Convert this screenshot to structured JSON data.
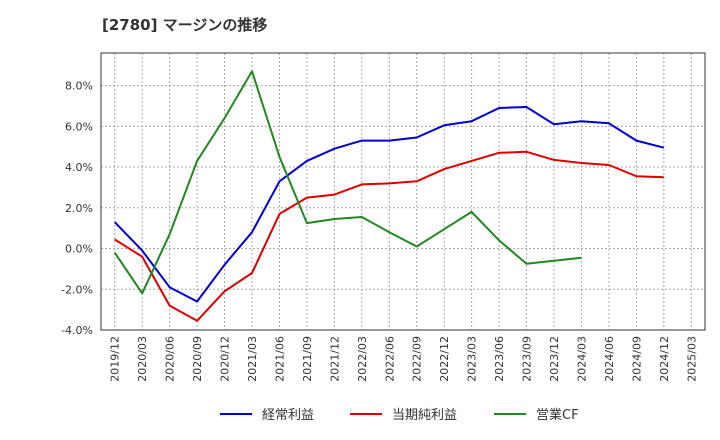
{
  "title": "[2780]  マージンの推移",
  "chart_data": {
    "type": "line",
    "title": "[2780]  マージンの推移",
    "xlabel": "",
    "ylabel": "",
    "grid": true,
    "legend_position": "bottom",
    "ylim": [
      -4.0,
      9.6
    ],
    "yticks": [
      -4.0,
      -2.0,
      0.0,
      2.0,
      4.0,
      6.0,
      8.0
    ],
    "ytick_labels": [
      "-4.0%",
      "-2.0%",
      "0.0%",
      "2.0%",
      "4.0%",
      "6.0%",
      "8.0%"
    ],
    "x": [
      "2019/12",
      "2020/03",
      "2020/06",
      "2020/09",
      "2020/12",
      "2021/03",
      "2021/06",
      "2021/09",
      "2021/12",
      "2022/03",
      "2022/06",
      "2022/09",
      "2022/12",
      "2023/03",
      "2023/06",
      "2023/09",
      "2023/12",
      "2024/03",
      "2024/06",
      "2024/09",
      "2024/12",
      "2025/03"
    ],
    "series": [
      {
        "name": "経常利益",
        "color": "#0000cc",
        "values": [
          1.3,
          -0.1,
          -1.9,
          -2.6,
          -0.8,
          0.8,
          3.3,
          4.3,
          4.9,
          5.3,
          5.3,
          5.45,
          6.05,
          6.25,
          6.9,
          6.95,
          6.1,
          6.25,
          6.15,
          5.3,
          4.95,
          null
        ]
      },
      {
        "name": "当期純利益",
        "color": "#dd0000",
        "values": [
          0.45,
          -0.4,
          -2.8,
          -3.55,
          -2.1,
          -1.2,
          1.7,
          2.5,
          2.65,
          3.15,
          3.2,
          3.3,
          3.9,
          4.3,
          4.7,
          4.75,
          4.35,
          4.2,
          4.1,
          3.55,
          3.5,
          null
        ]
      },
      {
        "name": "営業CF",
        "color": "#228822",
        "values": [
          -0.2,
          -2.2,
          0.7,
          4.3,
          6.4,
          8.7,
          4.5,
          1.25,
          1.45,
          1.55,
          0.8,
          0.1,
          0.95,
          1.8,
          0.4,
          -0.75,
          -0.6,
          -0.45,
          null,
          null,
          null,
          null
        ]
      }
    ]
  }
}
